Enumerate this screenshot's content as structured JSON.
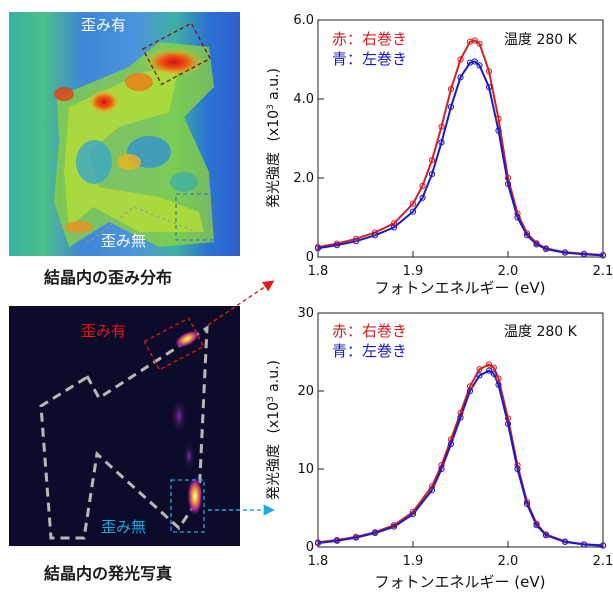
{
  "strain_map": {
    "caption": "結晶内の歪み分布",
    "label_strained": "歪み有",
    "label_unstrained": "歪み無"
  },
  "photo": {
    "caption": "結晶内の発光写真",
    "label_strained": "歪み有",
    "label_unstrained": "歪み無"
  },
  "colors": {
    "red_series": "#d42020",
    "blue_series": "#1a1ac8",
    "strained_box": "#e01818",
    "unstrained_box": "#1ea8e0"
  },
  "chart_data": [
    {
      "type": "line",
      "legend_red": "赤：右巻き",
      "legend_blue": "青：左巻き",
      "annotation": "温度 280 K",
      "xlabel": "フォトンエネルギー (eV)",
      "ylabel_main": "発光強度",
      "ylabel_unit_pre": "(x10",
      "ylabel_unit_exp": "3",
      "ylabel_unit_post": " a.u.)",
      "xlim": [
        1.8,
        2.1
      ],
      "ylim": [
        0,
        6.0
      ],
      "xticks": [
        "1.8",
        "1.9",
        "2.0",
        "2.1"
      ],
      "yticks": [
        "0",
        "2.0",
        "4.0",
        "6.0"
      ],
      "x": [
        1.8,
        1.82,
        1.84,
        1.86,
        1.88,
        1.9,
        1.91,
        1.92,
        1.93,
        1.94,
        1.95,
        1.96,
        1.965,
        1.97,
        1.98,
        1.99,
        2.0,
        2.01,
        2.02,
        2.03,
        2.04,
        2.06,
        2.08,
        2.1
      ],
      "series": [
        {
          "name": "赤：右巻き",
          "color": "#d42020",
          "values": [
            0.25,
            0.34,
            0.46,
            0.62,
            0.85,
            1.35,
            1.8,
            2.45,
            3.3,
            4.25,
            5.0,
            5.45,
            5.48,
            5.4,
            4.7,
            3.5,
            2.0,
            1.1,
            0.6,
            0.35,
            0.22,
            0.12,
            0.08,
            0.05
          ]
        },
        {
          "name": "青：左巻き",
          "color": "#1a1ac8",
          "values": [
            0.22,
            0.3,
            0.4,
            0.55,
            0.75,
            1.15,
            1.5,
            2.1,
            2.9,
            3.8,
            4.55,
            4.92,
            4.95,
            4.85,
            4.3,
            3.2,
            1.85,
            1.0,
            0.55,
            0.32,
            0.2,
            0.11,
            0.07,
            0.04
          ]
        }
      ]
    },
    {
      "type": "line",
      "legend_red": "赤：右巻き",
      "legend_blue": "青：左巻き",
      "annotation": "温度 280 K",
      "xlabel": "フォトンエネルギー (eV)",
      "ylabel_main": "発光強度",
      "ylabel_unit_pre": "(x10",
      "ylabel_unit_exp": "3",
      "ylabel_unit_post": " a.u.)",
      "xlim": [
        1.8,
        2.1
      ],
      "ylim": [
        0,
        30
      ],
      "xticks": [
        "1.8",
        "1.9",
        "2.0",
        "2.1"
      ],
      "yticks": [
        "0",
        "10",
        "20",
        "30"
      ],
      "x": [
        1.8,
        1.82,
        1.84,
        1.86,
        1.88,
        1.9,
        1.92,
        1.93,
        1.94,
        1.95,
        1.96,
        1.97,
        1.98,
        1.985,
        1.99,
        2.0,
        2.01,
        2.02,
        2.03,
        2.04,
        2.06,
        2.08,
        2.1
      ],
      "series": [
        {
          "name": "赤：右巻き",
          "color": "#d42020",
          "values": [
            0.6,
            0.9,
            1.3,
            1.9,
            2.8,
            4.5,
            7.8,
            10.5,
            13.8,
            17.2,
            20.6,
            22.8,
            23.4,
            23.0,
            21.6,
            16.5,
            10.5,
            5.8,
            3.0,
            1.6,
            0.7,
            0.35,
            0.2
          ]
        },
        {
          "name": "青：左巻き",
          "color": "#1a1ac8",
          "values": [
            0.5,
            0.8,
            1.2,
            1.8,
            2.6,
            4.2,
            7.3,
            10.0,
            13.2,
            16.6,
            20.0,
            22.0,
            22.6,
            22.2,
            20.8,
            15.8,
            10.0,
            5.5,
            2.8,
            1.5,
            0.65,
            0.32,
            0.18
          ]
        }
      ]
    }
  ]
}
